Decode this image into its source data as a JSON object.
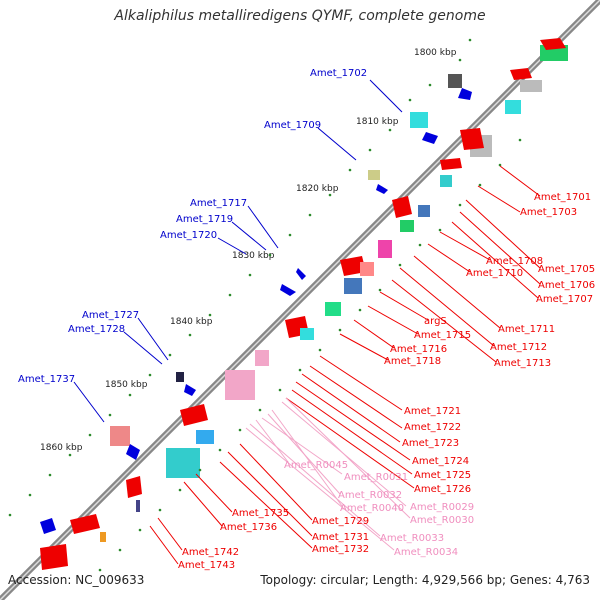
{
  "title": "Alkaliphilus metalliredigens QYMF, complete genome",
  "accession": "Accession: NC_009633",
  "topology": "Topology: circular; Length: 4,929,566 bp; Genes: 4,763",
  "ticks": [
    "1800 kbp",
    "1810 kbp",
    "1820 kbp",
    "1830 kbp",
    "1840 kbp",
    "1850 kbp",
    "1860 kbp"
  ],
  "labels_left": [
    "Amet_1702",
    "Amet_1709",
    "Amet_1717",
    "Amet_1719",
    "Amet_1720",
    "Amet_1727",
    "Amet_1728",
    "Amet_1737"
  ],
  "labels_right": [
    "Amet_1701",
    "Amet_1703",
    "Amet_1705",
    "Amet_1706",
    "Amet_1707",
    "Amet_1708",
    "Amet_1710",
    "Amet_1711",
    "Amet_1712",
    "Amet_1713",
    "argS",
    "Amet_1715",
    "Amet_1716",
    "Amet_1718",
    "Amet_1721",
    "Amet_1722",
    "Amet_1723",
    "Amet_1724",
    "Amet_1725",
    "Amet_1726",
    "Amet_1729",
    "Amet_1731",
    "Amet_1732",
    "Amet_1735",
    "Amet_1736",
    "Amet_1742",
    "Amet_1743"
  ],
  "labels_rna": [
    "Amet_R0045",
    "Amet_R0031",
    "Amet_R0032",
    "Amet_R0040",
    "Amet_R0029",
    "Amet_R0030",
    "Amet_R0033",
    "Amet_R0034"
  ],
  "colors": {
    "forward": "#ee0000",
    "reverse": "#0000dd",
    "rna": "#f2a6c8",
    "backbone": "#888888",
    "tick": "#2a8a2a"
  }
}
